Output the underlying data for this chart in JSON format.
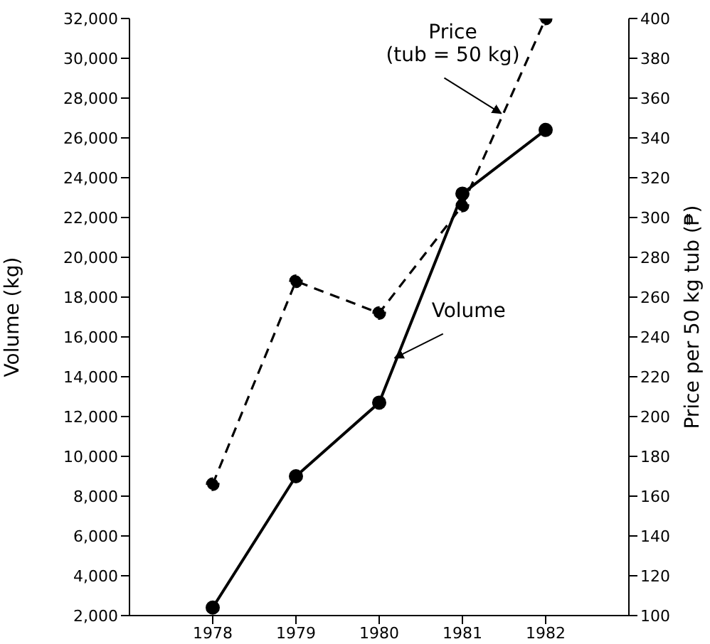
{
  "chart_data": {
    "type": "line",
    "ylabel": "Volume (kg)",
    "y2label": "Price per 50 kg tub (₱)",
    "x": [
      1978,
      1979,
      1980,
      1981,
      1982
    ],
    "xlim": [
      1977,
      1983
    ],
    "xticks": [
      1978,
      1979,
      1980,
      1981,
      1982
    ],
    "ylim": [
      2000,
      32000
    ],
    "yticks": [
      {
        "value": 2000,
        "label": "2,000"
      },
      {
        "value": 4000,
        "label": "4,000"
      },
      {
        "value": 6000,
        "label": "6,000"
      },
      {
        "value": 8000,
        "label": "8,000"
      },
      {
        "value": 10000,
        "label": "10,000"
      },
      {
        "value": 12000,
        "label": "12,000"
      },
      {
        "value": 14000,
        "label": "14,000"
      },
      {
        "value": 16000,
        "label": "16,000"
      },
      {
        "value": 18000,
        "label": "18,000"
      },
      {
        "value": 20000,
        "label": "20,000"
      },
      {
        "value": 22000,
        "label": "22,000"
      },
      {
        "value": 24000,
        "label": "24,000"
      },
      {
        "value": 26000,
        "label": "26,000"
      },
      {
        "value": 28000,
        "label": "28,000"
      },
      {
        "value": 30000,
        "label": "30,000"
      },
      {
        "value": 32000,
        "label": "32,000"
      }
    ],
    "y2lim": [
      100,
      400
    ],
    "y2ticks": [
      100,
      120,
      140,
      160,
      180,
      200,
      220,
      240,
      260,
      280,
      300,
      320,
      340,
      360,
      380,
      400
    ],
    "series": [
      {
        "color": "#000000",
        "line_style": "solid",
        "values": [
          2400,
          9000,
          12700,
          23200,
          26400
        ]
      },
      {
        "color": "#000000",
        "line_style": "dashed",
        "axis": "y2",
        "values": [
          166,
          268,
          252,
          306,
          400
        ]
      }
    ],
    "marker": "circle",
    "grid": false,
    "annotations": [
      {
        "text": "Price\n(tub = 50 kg)",
        "x": 1981.5,
        "y": 27300
      },
      {
        "text": "Volume",
        "x": 1980.22,
        "y": 15010
      }
    ]
  }
}
